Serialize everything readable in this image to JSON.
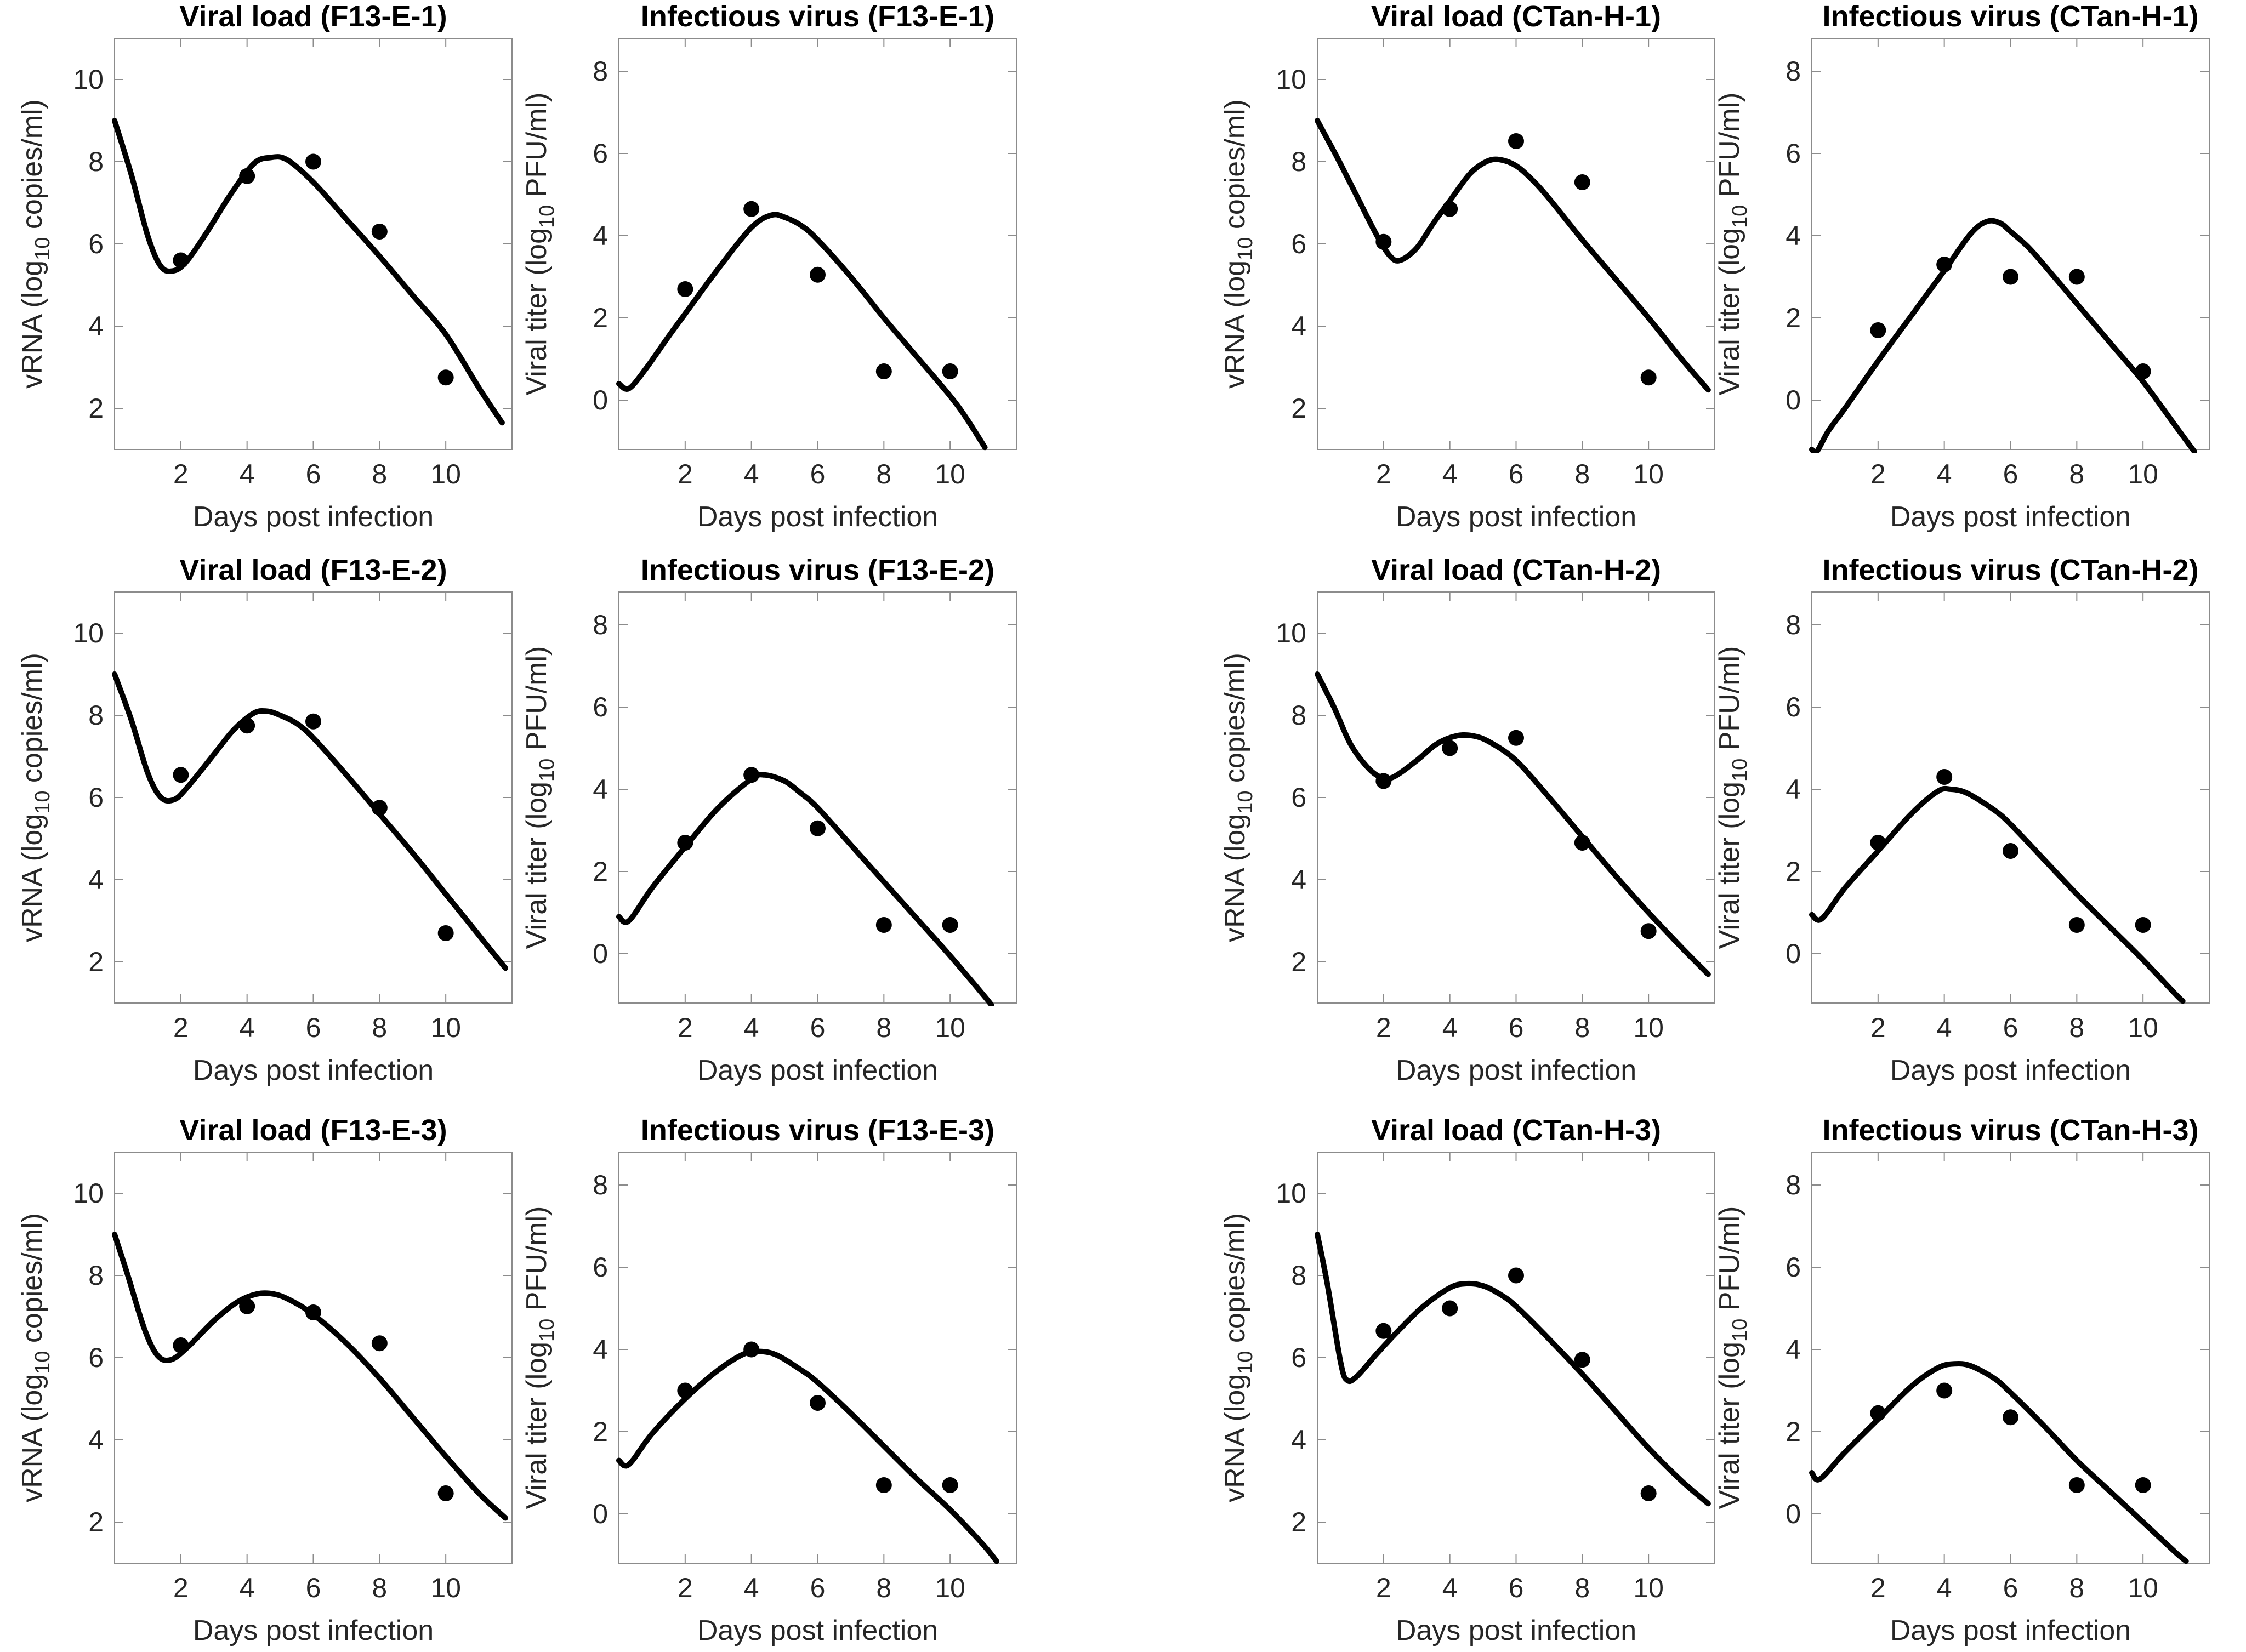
{
  "page": {
    "background": "#ffffff"
  },
  "shared": {
    "xlabel": "Days post infection",
    "xticks": [
      2,
      4,
      6,
      8,
      10
    ],
    "xlim": [
      0,
      12
    ],
    "colors": {
      "curve": "#000000",
      "marker": "#000000",
      "box_line": "#8c8c8c",
      "tick_mark": "#8c8c8c",
      "tick_text": "#262626",
      "label_text": "#262626",
      "title_text": "#000000"
    }
  },
  "chart_data": [
    {
      "type": "scatter+line",
      "title": "Viral load (F13-E-1)",
      "xlabel": "Days post infection",
      "ylabel": {
        "pre": "vRNA (log",
        "sub": "10",
        "post": " copies/ml)"
      },
      "ylim": [
        1,
        11
      ],
      "yticks": [
        2,
        4,
        6,
        8,
        10
      ],
      "points": [
        [
          2,
          5.6
        ],
        [
          4,
          7.65
        ],
        [
          6,
          8.0
        ],
        [
          8,
          6.3
        ],
        [
          10,
          2.75
        ]
      ],
      "curve": [
        [
          0,
          9.0
        ],
        [
          0.5,
          7.7
        ],
        [
          1.0,
          6.2
        ],
        [
          1.4,
          5.45
        ],
        [
          1.8,
          5.35
        ],
        [
          2.2,
          5.6
        ],
        [
          2.8,
          6.3
        ],
        [
          3.5,
          7.2
        ],
        [
          4.2,
          7.95
        ],
        [
          4.7,
          8.1
        ],
        [
          5.2,
          8.05
        ],
        [
          6,
          7.5
        ],
        [
          7,
          6.6
        ],
        [
          8,
          5.7
        ],
        [
          9,
          4.75
        ],
        [
          10,
          3.8
        ],
        [
          11,
          2.5
        ],
        [
          11.7,
          1.65
        ]
      ]
    },
    {
      "type": "scatter+line",
      "title": "Infectious virus (F13-E-1)",
      "xlabel": "Days post infection",
      "ylabel": {
        "pre": "Viral titer (log",
        "sub": "10",
        "post": " PFU/ml)"
      },
      "ylim": [
        -1.2,
        8.8
      ],
      "yticks": [
        0,
        2,
        4,
        6,
        8
      ],
      "points": [
        [
          2,
          2.7
        ],
        [
          4,
          4.65
        ],
        [
          6,
          3.05
        ],
        [
          8,
          0.7
        ],
        [
          10,
          0.7
        ]
      ],
      "curve": [
        [
          0,
          0.4
        ],
        [
          0.3,
          0.28
        ],
        [
          0.8,
          0.75
        ],
        [
          1.5,
          1.55
        ],
        [
          2,
          2.1
        ],
        [
          3,
          3.2
        ],
        [
          4,
          4.2
        ],
        [
          4.6,
          4.5
        ],
        [
          5,
          4.45
        ],
        [
          5.5,
          4.25
        ],
        [
          6,
          3.9
        ],
        [
          7,
          3.0
        ],
        [
          8,
          2.0
        ],
        [
          9,
          1.05
        ],
        [
          10,
          0.1
        ],
        [
          10.5,
          -0.45
        ],
        [
          11.05,
          -1.15
        ]
      ]
    },
    {
      "type": "scatter+line",
      "title": "Viral load (CTan-H-1)",
      "xlabel": "Days post infection",
      "ylabel": {
        "pre": "vRNA (log",
        "sub": "10",
        "post": " copies/ml)"
      },
      "ylim": [
        1,
        11
      ],
      "yticks": [
        2,
        4,
        6,
        8,
        10
      ],
      "points": [
        [
          2,
          6.05
        ],
        [
          4,
          6.85
        ],
        [
          6,
          8.5
        ],
        [
          8,
          7.5
        ],
        [
          10,
          2.75
        ]
      ],
      "curve": [
        [
          0,
          9.0
        ],
        [
          0.6,
          8.1
        ],
        [
          1.2,
          7.15
        ],
        [
          1.8,
          6.2
        ],
        [
          2.2,
          5.7
        ],
        [
          2.5,
          5.6
        ],
        [
          3,
          5.9
        ],
        [
          3.5,
          6.5
        ],
        [
          4,
          7.05
        ],
        [
          4.6,
          7.7
        ],
        [
          5.1,
          8.0
        ],
        [
          5.5,
          8.05
        ],
        [
          6,
          7.9
        ],
        [
          6.5,
          7.55
        ],
        [
          7,
          7.1
        ],
        [
          8,
          6.1
        ],
        [
          9,
          5.15
        ],
        [
          10,
          4.2
        ],
        [
          11,
          3.2
        ],
        [
          11.8,
          2.45
        ]
      ]
    },
    {
      "type": "scatter+line",
      "title": "Infectious virus (CTan-H-1)",
      "xlabel": "Days post infection",
      "ylabel": {
        "pre": "Viral titer (log",
        "sub": "10",
        "post": " PFU/ml)"
      },
      "ylim": [
        -1.2,
        8.8
      ],
      "yticks": [
        0,
        2,
        4,
        6,
        8
      ],
      "points": [
        [
          2,
          1.7
        ],
        [
          4,
          3.3
        ],
        [
          6,
          3.0
        ],
        [
          8,
          3.0
        ],
        [
          10,
          0.7
        ]
      ],
      "curve": [
        [
          0,
          -1.2
        ],
        [
          0.15,
          -1.25
        ],
        [
          0.5,
          -0.75
        ],
        [
          1,
          -0.2
        ],
        [
          2,
          0.95
        ],
        [
          3,
          2.05
        ],
        [
          4,
          3.15
        ],
        [
          4.8,
          4.05
        ],
        [
          5.3,
          4.35
        ],
        [
          5.7,
          4.3
        ],
        [
          6,
          4.1
        ],
        [
          6.5,
          3.75
        ],
        [
          7,
          3.3
        ],
        [
          8,
          2.35
        ],
        [
          9,
          1.4
        ],
        [
          10,
          0.45
        ],
        [
          11,
          -0.65
        ],
        [
          11.55,
          -1.25
        ]
      ]
    },
    {
      "type": "scatter+line",
      "title": "Viral load (F13-E-2)",
      "xlabel": "Days post infection",
      "ylabel": {
        "pre": "vRNA (log",
        "sub": "10",
        "post": " copies/ml)"
      },
      "ylim": [
        1,
        11
      ],
      "yticks": [
        2,
        4,
        6,
        8,
        10
      ],
      "points": [
        [
          2,
          6.55
        ],
        [
          4,
          7.75
        ],
        [
          6,
          7.85
        ],
        [
          8,
          5.75
        ],
        [
          10,
          2.7
        ]
      ],
      "curve": [
        [
          0,
          9.0
        ],
        [
          0.5,
          7.9
        ],
        [
          1.0,
          6.6
        ],
        [
          1.4,
          6.0
        ],
        [
          1.8,
          5.95
        ],
        [
          2.2,
          6.25
        ],
        [
          3,
          7.05
        ],
        [
          3.6,
          7.65
        ],
        [
          4.2,
          8.05
        ],
        [
          4.6,
          8.1
        ],
        [
          5,
          8.0
        ],
        [
          5.5,
          7.8
        ],
        [
          6,
          7.45
        ],
        [
          7,
          6.55
        ],
        [
          8,
          5.6
        ],
        [
          9,
          4.65
        ],
        [
          10,
          3.65
        ],
        [
          11,
          2.65
        ],
        [
          11.8,
          1.85
        ]
      ]
    },
    {
      "type": "scatter+line",
      "title": "Infectious virus (F13-E-2)",
      "xlabel": "Days post infection",
      "ylabel": {
        "pre": "Viral titer (log",
        "sub": "10",
        "post": " PFU/ml)"
      },
      "ylim": [
        -1.2,
        8.8
      ],
      "yticks": [
        0,
        2,
        4,
        6,
        8
      ],
      "points": [
        [
          2,
          2.7
        ],
        [
          4,
          4.35
        ],
        [
          6,
          3.05
        ],
        [
          8,
          0.7
        ],
        [
          10,
          0.7
        ]
      ],
      "curve": [
        [
          0,
          0.9
        ],
        [
          0.3,
          0.8
        ],
        [
          1,
          1.6
        ],
        [
          2,
          2.6
        ],
        [
          3,
          3.55
        ],
        [
          4,
          4.25
        ],
        [
          4.4,
          4.35
        ],
        [
          5,
          4.2
        ],
        [
          5.5,
          3.9
        ],
        [
          6,
          3.55
        ],
        [
          7,
          2.65
        ],
        [
          8,
          1.75
        ],
        [
          9,
          0.85
        ],
        [
          10,
          -0.05
        ],
        [
          11,
          -1.0
        ],
        [
          11.25,
          -1.25
        ]
      ]
    },
    {
      "type": "scatter+line",
      "title": "Viral load (CTan-H-2)",
      "xlabel": "Days post infection",
      "ylabel": {
        "pre": "vRNA (log",
        "sub": "10",
        "post": " copies/ml)"
      },
      "ylim": [
        1,
        11
      ],
      "yticks": [
        2,
        4,
        6,
        8,
        10
      ],
      "points": [
        [
          2,
          6.4
        ],
        [
          4,
          7.2
        ],
        [
          6,
          7.45
        ],
        [
          8,
          4.9
        ],
        [
          10,
          2.75
        ]
      ],
      "curve": [
        [
          0,
          9.0
        ],
        [
          0.5,
          8.2
        ],
        [
          1.0,
          7.3
        ],
        [
          1.5,
          6.75
        ],
        [
          1.9,
          6.5
        ],
        [
          2.3,
          6.5
        ],
        [
          3,
          6.9
        ],
        [
          3.6,
          7.3
        ],
        [
          4.2,
          7.5
        ],
        [
          4.7,
          7.5
        ],
        [
          5.2,
          7.35
        ],
        [
          6,
          6.9
        ],
        [
          7,
          6.0
        ],
        [
          8,
          5.05
        ],
        [
          9,
          4.1
        ],
        [
          10,
          3.2
        ],
        [
          11,
          2.35
        ],
        [
          11.8,
          1.7
        ]
      ]
    },
    {
      "type": "scatter+line",
      "title": "Infectious virus (CTan-H-2)",
      "xlabel": "Days post infection",
      "ylabel": {
        "pre": "Viral titer (log",
        "sub": "10",
        "post": " PFU/ml)"
      },
      "ylim": [
        -1.2,
        8.8
      ],
      "yticks": [
        0,
        2,
        4,
        6,
        8
      ],
      "points": [
        [
          2,
          2.7
        ],
        [
          4,
          4.3
        ],
        [
          6,
          2.5
        ],
        [
          8,
          0.7
        ],
        [
          10,
          0.7
        ]
      ],
      "curve": [
        [
          0,
          0.95
        ],
        [
          0.3,
          0.85
        ],
        [
          1,
          1.6
        ],
        [
          2,
          2.5
        ],
        [
          3,
          3.4
        ],
        [
          3.8,
          3.95
        ],
        [
          4.2,
          4.0
        ],
        [
          4.7,
          3.9
        ],
        [
          5.5,
          3.5
        ],
        [
          6,
          3.15
        ],
        [
          7,
          2.3
        ],
        [
          8,
          1.45
        ],
        [
          9,
          0.65
        ],
        [
          10,
          -0.15
        ],
        [
          11,
          -1.0
        ],
        [
          11.2,
          -1.15
        ]
      ]
    },
    {
      "type": "scatter+line",
      "title": "Viral load (F13-E-3)",
      "xlabel": "Days post infection",
      "ylabel": {
        "pre": "vRNA (log",
        "sub": "10",
        "post": " copies/ml)"
      },
      "ylim": [
        1,
        11
      ],
      "yticks": [
        2,
        4,
        6,
        8,
        10
      ],
      "points": [
        [
          2,
          6.3
        ],
        [
          4,
          7.25
        ],
        [
          6,
          7.1
        ],
        [
          8,
          6.35
        ],
        [
          10,
          2.7
        ]
      ],
      "curve": [
        [
          0,
          9.0
        ],
        [
          0.4,
          8.0
        ],
        [
          0.9,
          6.7
        ],
        [
          1.3,
          6.05
        ],
        [
          1.7,
          5.95
        ],
        [
          2.2,
          6.25
        ],
        [
          3,
          6.9
        ],
        [
          3.7,
          7.35
        ],
        [
          4.3,
          7.55
        ],
        [
          4.8,
          7.55
        ],
        [
          5.3,
          7.4
        ],
        [
          6,
          7.05
        ],
        [
          7,
          6.35
        ],
        [
          8,
          5.5
        ],
        [
          9,
          4.55
        ],
        [
          10,
          3.6
        ],
        [
          11,
          2.7
        ],
        [
          11.8,
          2.1
        ]
      ]
    },
    {
      "type": "scatter+line",
      "title": "Infectious virus (F13-E-3)",
      "xlabel": "Days post infection",
      "ylabel": {
        "pre": "Viral titer (log",
        "sub": "10",
        "post": " PFU/ml)"
      },
      "ylim": [
        -1.2,
        8.8
      ],
      "yticks": [
        0,
        2,
        4,
        6,
        8
      ],
      "points": [
        [
          2,
          3.0
        ],
        [
          4,
          4.0
        ],
        [
          6,
          2.7
        ],
        [
          8,
          0.7
        ],
        [
          10,
          0.7
        ]
      ],
      "curve": [
        [
          0,
          1.3
        ],
        [
          0.3,
          1.2
        ],
        [
          1,
          1.95
        ],
        [
          2,
          2.8
        ],
        [
          3,
          3.5
        ],
        [
          3.8,
          3.9
        ],
        [
          4.3,
          3.95
        ],
        [
          4.8,
          3.85
        ],
        [
          5.5,
          3.5
        ],
        [
          6,
          3.2
        ],
        [
          7,
          2.45
        ],
        [
          8,
          1.65
        ],
        [
          9,
          0.85
        ],
        [
          10,
          0.1
        ],
        [
          11,
          -0.75
        ],
        [
          11.4,
          -1.15
        ]
      ]
    },
    {
      "type": "scatter+line",
      "title": "Viral load (CTan-H-3)",
      "xlabel": "Days post infection",
      "ylabel": {
        "pre": "vRNA (log",
        "sub": "10",
        "post": " copies/ml)"
      },
      "ylim": [
        1,
        11
      ],
      "yticks": [
        2,
        4,
        6,
        8,
        10
      ],
      "points": [
        [
          2,
          6.65
        ],
        [
          4,
          7.2
        ],
        [
          6,
          8.0
        ],
        [
          8,
          5.95
        ],
        [
          10,
          2.7
        ]
      ],
      "curve": [
        [
          0,
          9.0
        ],
        [
          0.3,
          7.8
        ],
        [
          0.7,
          5.9
        ],
        [
          0.9,
          5.45
        ],
        [
          1.2,
          5.55
        ],
        [
          1.8,
          6.1
        ],
        [
          2.5,
          6.7
        ],
        [
          3.2,
          7.25
        ],
        [
          4,
          7.7
        ],
        [
          4.5,
          7.8
        ],
        [
          5,
          7.75
        ],
        [
          5.5,
          7.55
        ],
        [
          6,
          7.25
        ],
        [
          7,
          6.45
        ],
        [
          8,
          5.6
        ],
        [
          9,
          4.7
        ],
        [
          10,
          3.8
        ],
        [
          11,
          3.0
        ],
        [
          11.8,
          2.45
        ]
      ]
    },
    {
      "type": "scatter+line",
      "title": "Infectious virus (CTan-H-3)",
      "xlabel": "Days post infection",
      "ylabel": {
        "pre": "Viral titer (log",
        "sub": "10",
        "post": " PFU/ml)"
      },
      "ylim": [
        -1.2,
        8.8
      ],
      "yticks": [
        0,
        2,
        4,
        6,
        8
      ],
      "points": [
        [
          2,
          2.45
        ],
        [
          4,
          3.0
        ],
        [
          6,
          2.35
        ],
        [
          8,
          0.7
        ],
        [
          10,
          0.7
        ]
      ],
      "curve": [
        [
          0,
          1.0
        ],
        [
          0.25,
          0.85
        ],
        [
          1,
          1.5
        ],
        [
          2,
          2.3
        ],
        [
          3,
          3.1
        ],
        [
          3.8,
          3.55
        ],
        [
          4.3,
          3.65
        ],
        [
          4.8,
          3.6
        ],
        [
          5.5,
          3.3
        ],
        [
          6,
          2.95
        ],
        [
          7,
          2.15
        ],
        [
          8,
          1.3
        ],
        [
          9,
          0.55
        ],
        [
          10,
          -0.2
        ],
        [
          11,
          -0.95
        ],
        [
          11.3,
          -1.15
        ]
      ]
    }
  ]
}
